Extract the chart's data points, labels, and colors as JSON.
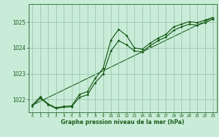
{
  "bg_color": "#c8ecd8",
  "grid_color": "#a0c8b0",
  "line_color": "#1a5c1a",
  "xlabel": "Graphe pression niveau de la mer (hPa)",
  "xlim": [
    -0.5,
    23.5
  ],
  "ylim": [
    1021.5,
    1025.7
  ],
  "yticks": [
    1022,
    1023,
    1024,
    1025
  ],
  "xticks": [
    0,
    1,
    2,
    3,
    4,
    5,
    6,
    7,
    8,
    9,
    10,
    11,
    12,
    13,
    14,
    15,
    16,
    17,
    18,
    19,
    20,
    21,
    22,
    23
  ],
  "main_x": [
    0,
    1,
    2,
    3,
    4,
    5,
    6,
    7,
    8,
    9,
    10,
    11,
    12,
    13,
    14,
    15,
    16,
    17,
    18,
    19,
    20,
    21,
    22,
    23
  ],
  "main_y": [
    1021.78,
    1022.1,
    1021.83,
    1021.68,
    1021.73,
    1021.75,
    1022.2,
    1022.3,
    1022.82,
    1023.2,
    1024.3,
    1024.72,
    1024.48,
    1024.0,
    1023.95,
    1024.18,
    1024.38,
    1024.52,
    1024.82,
    1024.92,
    1025.02,
    1024.98,
    1025.08,
    1025.18
  ],
  "smooth_x": [
    0,
    1,
    2,
    3,
    4,
    5,
    6,
    7,
    8,
    9,
    10,
    11,
    12,
    13,
    14,
    15,
    16,
    17,
    18,
    19,
    20,
    21,
    22,
    23
  ],
  "smooth_y": [
    1021.75,
    1022.05,
    1021.8,
    1021.65,
    1021.7,
    1021.72,
    1022.08,
    1022.18,
    1022.65,
    1022.98,
    1023.88,
    1024.28,
    1024.12,
    1023.88,
    1023.85,
    1024.08,
    1024.28,
    1024.42,
    1024.68,
    1024.82,
    1024.92,
    1024.88,
    1024.98,
    1025.12
  ],
  "trend_x": [
    0,
    23
  ],
  "trend_y": [
    1021.78,
    1025.18
  ]
}
